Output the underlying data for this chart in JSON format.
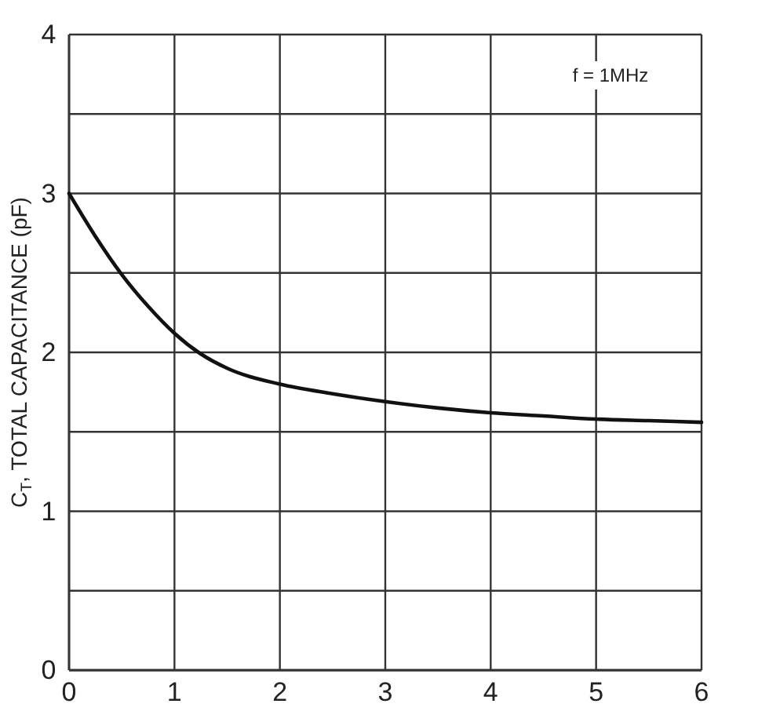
{
  "chart_data": {
    "type": "line",
    "ylabel": "C$_{T}$, TOTAL CAPACITANCE (pF)",
    "annotations": [
      "f = 1MHz"
    ],
    "x": [
      0,
      0.25,
      0.5,
      0.75,
      1,
      1.25,
      1.5,
      2,
      2.5,
      3,
      3.5,
      4,
      4.5,
      5,
      5.5,
      6
    ],
    "series": [
      {
        "color": "#111111",
        "values": [
          3.0,
          2.73,
          2.49,
          2.29,
          2.12,
          1.99,
          1.9,
          1.8,
          1.74,
          1.69,
          1.65,
          1.62,
          1.6,
          1.58,
          1.57,
          1.56
        ]
      }
    ],
    "xlim": [
      0,
      6
    ],
    "xticks": [
      0,
      1,
      2,
      3,
      4,
      5,
      6
    ],
    "ylim": [
      0,
      4
    ],
    "yticks": [
      0,
      {
        "value": 0.5,
        "label": null
      },
      1,
      {
        "value": 1.5,
        "label": null
      },
      2,
      {
        "value": 2.5,
        "label": null
      },
      3,
      {
        "value": 3.5,
        "label": null
      },
      4
    ],
    "grid": true,
    "line_style": "solid"
  }
}
